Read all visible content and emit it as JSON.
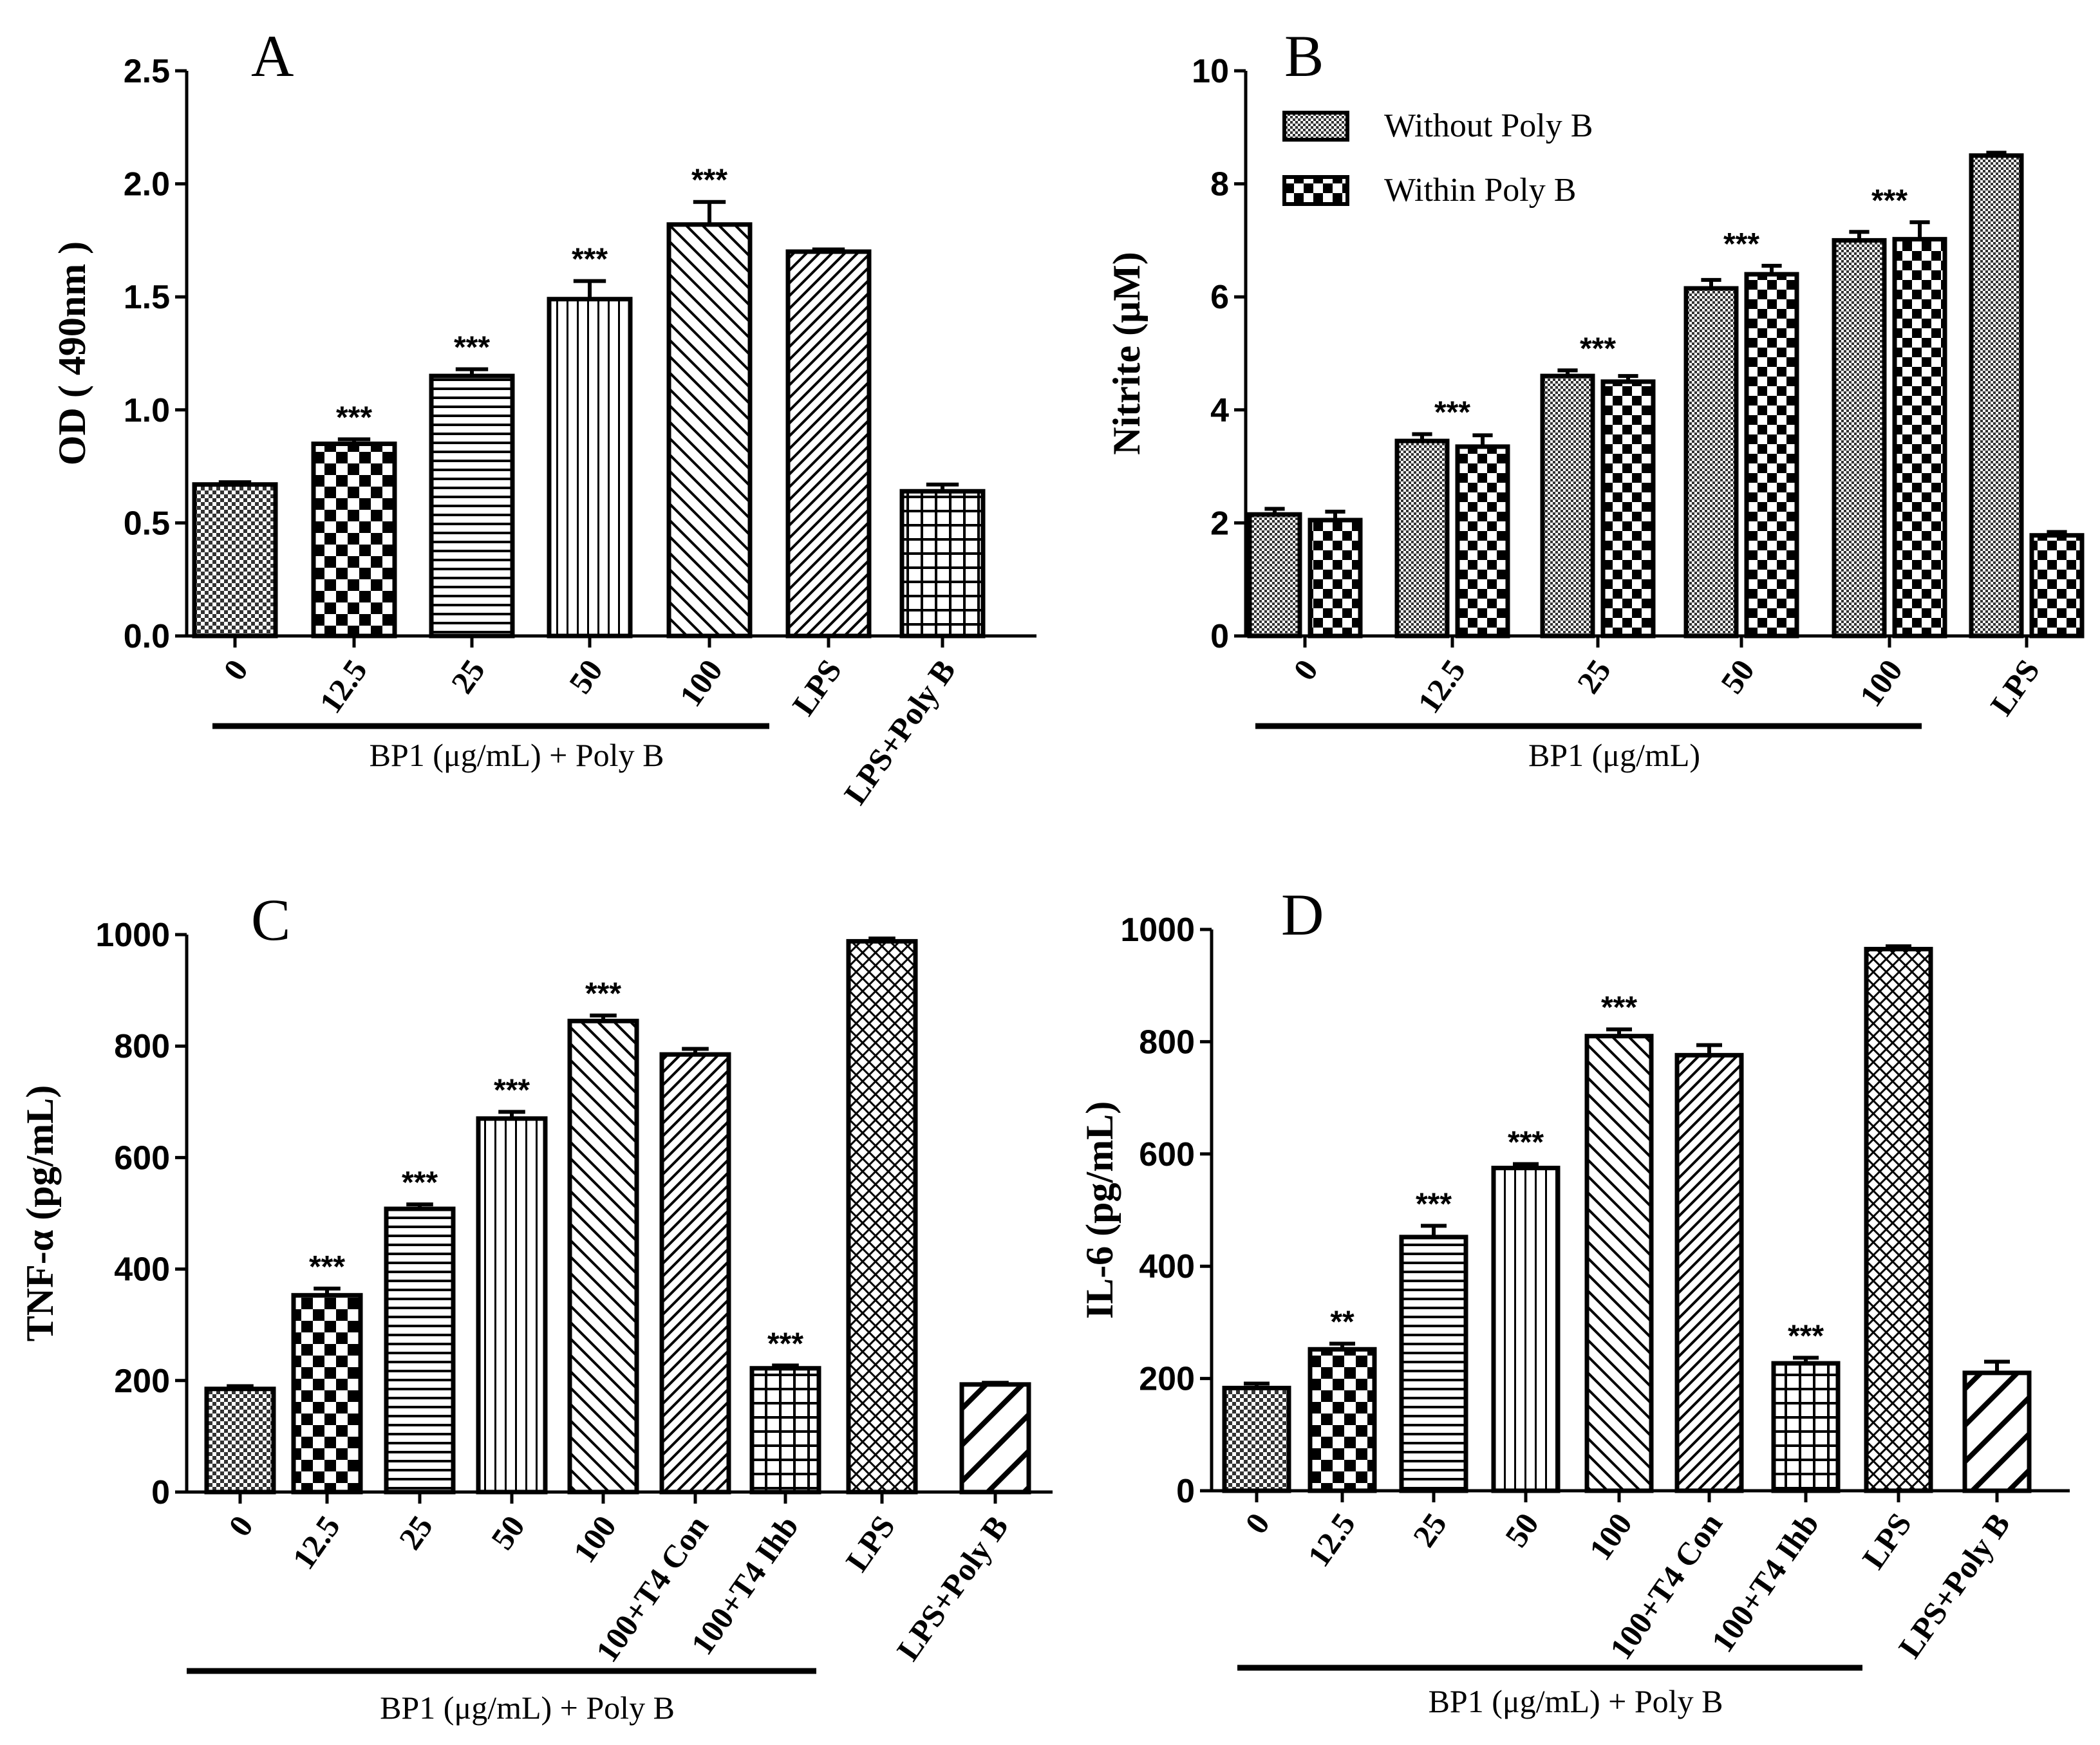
{
  "chart_data": [
    {
      "panel": "A",
      "type": "bar",
      "ylabel": "OD ( 490nm )",
      "ylim": [
        0,
        2.5
      ],
      "yticks": [
        "0.0",
        "0.5",
        "1.0",
        "1.5",
        "2.0",
        "2.5"
      ],
      "categories": [
        "0",
        "12.5",
        "25",
        "50",
        "100",
        "LPS",
        "LPS+Poly B"
      ],
      "values": [
        0.67,
        0.85,
        1.15,
        1.49,
        1.82,
        1.7,
        0.64
      ],
      "errors": [
        0.01,
        0.02,
        0.03,
        0.08,
        0.1,
        0.01,
        0.03
      ],
      "significance": [
        "",
        "***",
        "***",
        "***",
        "***",
        "",
        ""
      ],
      "patterns": [
        "dots",
        "checker",
        "hlines",
        "vlines",
        "diag",
        "diag-dense",
        "grid"
      ],
      "group_label": "BP1 (μg/mL) + Poly B",
      "group_span": [
        0,
        4
      ]
    },
    {
      "panel": "B",
      "type": "bar",
      "ylabel": "Nitrite (μM)",
      "ylim": [
        0,
        10
      ],
      "yticks": [
        "0",
        "2",
        "4",
        "6",
        "8",
        "10"
      ],
      "categories": [
        "0",
        "12.5",
        "25",
        "50",
        "100",
        "LPS"
      ],
      "series": [
        {
          "name": "Without Poly B",
          "values": [
            2.15,
            3.45,
            4.6,
            6.15,
            7.0,
            8.5
          ],
          "errors": [
            0.1,
            0.12,
            0.1,
            0.15,
            0.15,
            0.05
          ]
        },
        {
          "name": "Within Poly B",
          "values": [
            2.05,
            3.35,
            4.5,
            6.4,
            7.02,
            1.78
          ],
          "errors": [
            0.15,
            0.2,
            0.1,
            0.15,
            0.3,
            0.06
          ]
        }
      ],
      "significance": [
        "",
        "***",
        "***",
        "***",
        "***",
        ""
      ],
      "legend": [
        "Without Poly B",
        "Within Poly B"
      ],
      "legend_position": "top-left",
      "group_label": "BP1 (μg/mL)",
      "group_span": [
        0,
        4
      ]
    },
    {
      "panel": "C",
      "type": "bar",
      "ylabel": "TNF-α (pg/mL)",
      "ylim": [
        0,
        1000
      ],
      "yticks": [
        "0",
        "200",
        "400",
        "600",
        "800",
        "1000"
      ],
      "categories": [
        "0",
        "12.5",
        "25",
        "50",
        "100",
        "100+T4 Con",
        "100+T4 Ihb",
        "LPS",
        "LPS+Poly B"
      ],
      "values": [
        185,
        353,
        508,
        670,
        845,
        785,
        222,
        988,
        193
      ],
      "errors": [
        5,
        12,
        8,
        12,
        10,
        10,
        5,
        5,
        3
      ],
      "significance": [
        "",
        "***",
        "***",
        "***",
        "***",
        "",
        "***",
        "",
        ""
      ],
      "patterns": [
        "dots",
        "checker",
        "hlines",
        "vlines",
        "diag",
        "diag-dense",
        "grid",
        "crosshatch",
        "backslash"
      ],
      "group_label": "BP1 (μg/mL) + Poly B",
      "group_span": [
        0,
        6
      ]
    },
    {
      "panel": "D",
      "type": "bar",
      "ylabel": "IL-6 (pg/mL)",
      "ylim": [
        0,
        1000
      ],
      "yticks": [
        "0",
        "200",
        "400",
        "600",
        "800",
        "1000"
      ],
      "categories": [
        "0",
        "12.5",
        "25",
        "50",
        "100",
        "100+T4 Con",
        "100+T4 Ihb",
        "LPS",
        "LPS+Poly B"
      ],
      "values": [
        183,
        252,
        452,
        575,
        810,
        776,
        227,
        965,
        210
      ],
      "errors": [
        8,
        10,
        20,
        7,
        12,
        18,
        10,
        5,
        20
      ],
      "significance": [
        "",
        "**",
        "***",
        "***",
        "***",
        "",
        "***",
        "",
        ""
      ],
      "patterns": [
        "dots",
        "checker",
        "hlines",
        "vlines",
        "diag",
        "diag-dense",
        "grid",
        "crosshatch",
        "backslash"
      ],
      "group_label": "BP1 (μg/mL) + Poly B",
      "group_span": [
        0,
        6
      ]
    }
  ]
}
